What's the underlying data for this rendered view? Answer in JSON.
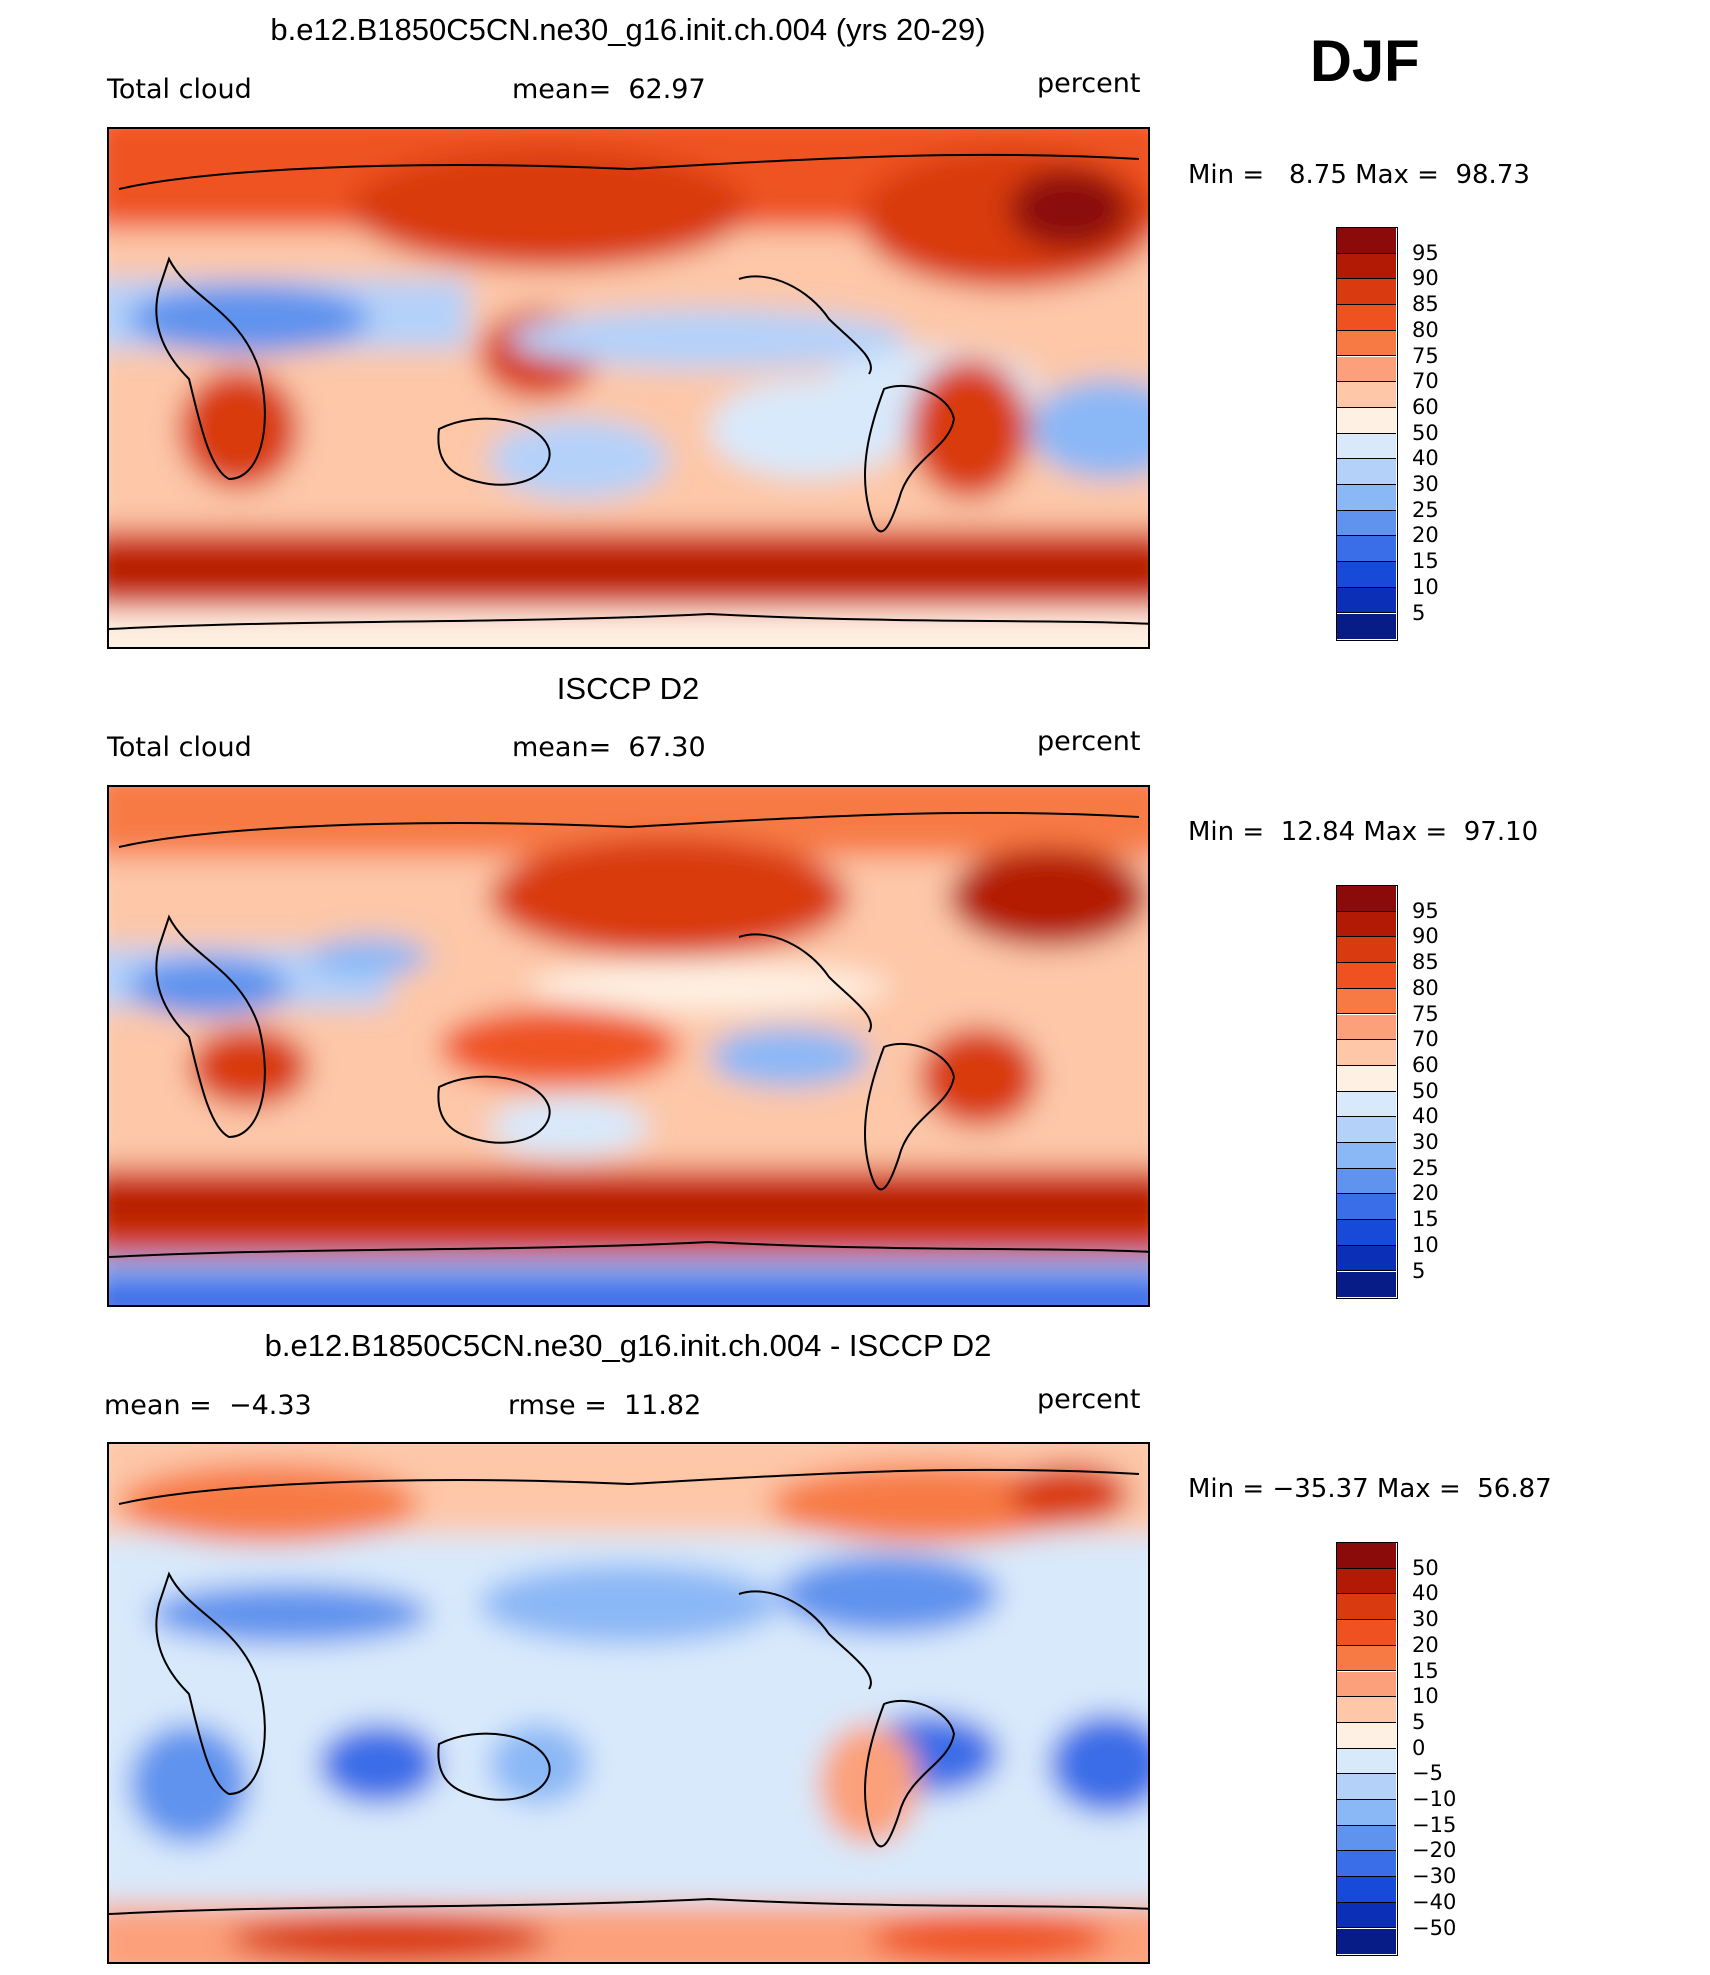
{
  "season": "DJF",
  "panels": [
    {
      "title": "b.e12.B1850C5CN.ne30_g16.init.ch.004 (yrs 20-29)",
      "left_label": "Total cloud",
      "center_label": "mean=  62.97",
      "right_label": "percent",
      "minmax": "Min =   8.75 Max =  98.73",
      "colorbar": {
        "labels": [
          "95",
          "90",
          "85",
          "80",
          "75",
          "70",
          "60",
          "50",
          "40",
          "30",
          "25",
          "20",
          "15",
          "10",
          "5"
        ],
        "colors": [
          "#8b0a0a",
          "#b31a06",
          "#d93a0f",
          "#ef5220",
          "#f77a45",
          "#fba07a",
          "#fdc7a8",
          "#fef0e2",
          "#d8e9fb",
          "#b4d1fa",
          "#8ab7f6",
          "#5f93ee",
          "#3a6de8",
          "#174ad9",
          "#0b2fb7",
          "#071c87"
        ]
      }
    },
    {
      "title": "ISCCP D2",
      "left_label": "Total cloud",
      "center_label": "mean=  67.30",
      "right_label": "percent",
      "minmax": "Min =  12.84 Max =  97.10",
      "colorbar": {
        "labels": [
          "95",
          "90",
          "85",
          "80",
          "75",
          "70",
          "60",
          "50",
          "40",
          "30",
          "25",
          "20",
          "15",
          "10",
          "5"
        ],
        "colors": [
          "#8b0a0a",
          "#b31a06",
          "#d93a0f",
          "#ef5220",
          "#f77a45",
          "#fba07a",
          "#fdc7a8",
          "#fef0e2",
          "#d8e9fb",
          "#b4d1fa",
          "#8ab7f6",
          "#5f93ee",
          "#3a6de8",
          "#174ad9",
          "#0b2fb7",
          "#071c87"
        ]
      }
    },
    {
      "title": "b.e12.B1850C5CN.ne30_g16.init.ch.004 - ISCCP D2",
      "left_label": "mean =  −4.33",
      "center_label": "rmse =  11.82",
      "right_label": "percent",
      "minmax": "Min = −35.37 Max =  56.87",
      "colorbar": {
        "labels": [
          "50",
          "40",
          "30",
          "20",
          "15",
          "10",
          "5",
          "0",
          "−5",
          "−10",
          "−15",
          "−20",
          "−30",
          "−40",
          "−50"
        ],
        "colors": [
          "#8b0a0a",
          "#b31a06",
          "#d93a0f",
          "#ef5220",
          "#f77a45",
          "#fba07a",
          "#fdc7a8",
          "#fef0e2",
          "#d8e9fb",
          "#b4d1fa",
          "#8ab7f6",
          "#5f93ee",
          "#3a6de8",
          "#174ad9",
          "#0b2fb7",
          "#071c87"
        ]
      }
    }
  ]
}
